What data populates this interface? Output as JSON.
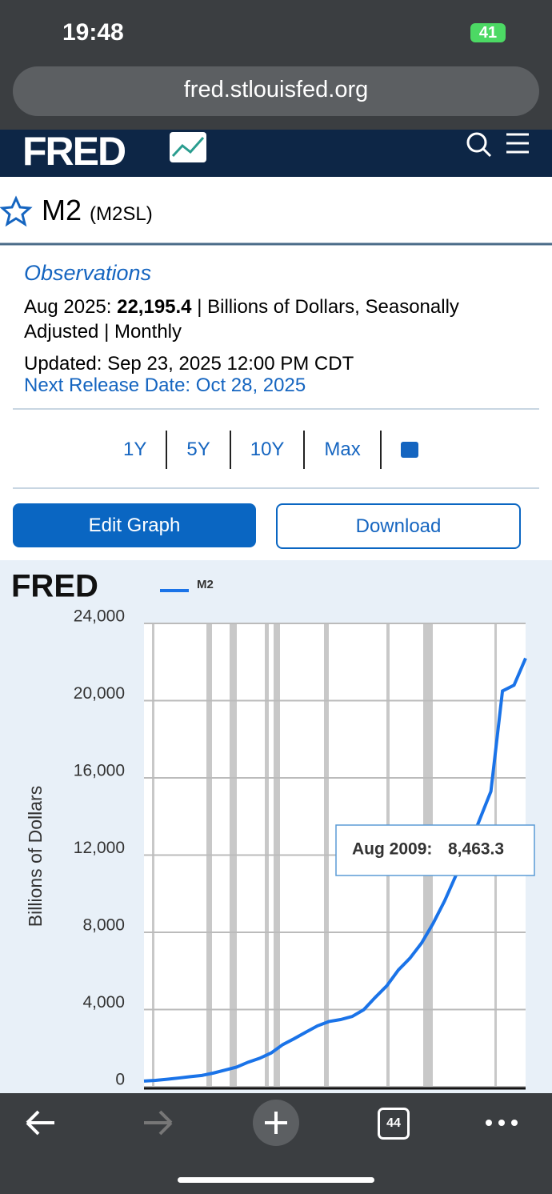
{
  "status_bar": {
    "time": "19:48",
    "battery": "41"
  },
  "browser": {
    "url": "fred.stlouisfed.org",
    "tabs": "44"
  },
  "header": {
    "logo": "FRED"
  },
  "series_header": {
    "title": "M2",
    "code": "(M2SL)"
  },
  "observations": {
    "heading": "Observations",
    "date": "Aug 2025:",
    "value": "22,195.4",
    "units": "| Billions of Dollars, Seasonally Adjusted | Monthly",
    "updated": "Updated: Sep 23, 2025 12:00 PM CDT",
    "next_release": "Next Release Date: Oct 28, 2025"
  },
  "ranges": [
    "1Y",
    "5Y",
    "10Y",
    "Max"
  ],
  "buttons": {
    "edit": "Edit Graph",
    "download": "Download"
  },
  "chart": {
    "type": "line",
    "ylabel": "Billions of Dollars",
    "series": [
      {
        "name": "M2",
        "color": "#1a73e8",
        "values": [
          297,
          332,
          387,
          453,
          525,
          587,
          710,
          861,
          1016,
          1271,
          1474,
          1753,
          2185,
          2495,
          2827,
          3154,
          3380,
          3481,
          3640,
          3990,
          4630,
          5230,
          6050,
          6660,
          7440,
          8460,
          9630,
          10980,
          12300,
          13800,
          15300,
          20500,
          20800,
          22195
        ]
      }
    ],
    "ylim": [
      0,
      24000
    ],
    "yticks": [
      0,
      {
        "value": 4000,
        "label": "4,000"
      },
      {
        "value": 8000,
        "label": "8,000"
      },
      {
        "value": 12000,
        "label": "12,000"
      },
      {
        "value": 16000,
        "label": "16,000"
      },
      {
        "value": 20000,
        "label": "20,000"
      },
      {
        "value": 24000,
        "label": "24,000"
      }
    ],
    "grid": true,
    "tooltip": {
      "date": "Aug 2009:",
      "value": "8,463.3"
    }
  }
}
